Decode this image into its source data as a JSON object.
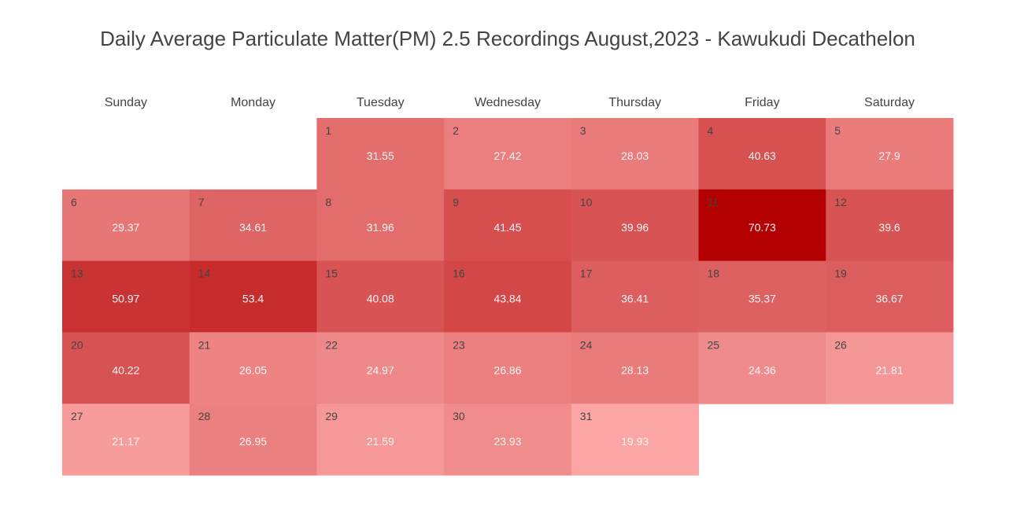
{
  "chart_data": {
    "type": "heatmap",
    "title": "Daily Average Particulate Matter(PM) 2.5 Recordings August,2023 - Kawukudi Decathelon",
    "weekdays": [
      "Sunday",
      "Monday",
      "Tuesday",
      "Wednesday",
      "Thursday",
      "Friday",
      "Saturday"
    ],
    "first_weekday_index": 2,
    "days": [
      1,
      2,
      3,
      4,
      5,
      6,
      7,
      8,
      9,
      10,
      11,
      12,
      13,
      14,
      15,
      16,
      17,
      18,
      19,
      20,
      21,
      22,
      23,
      24,
      25,
      26,
      27,
      28,
      29,
      30,
      31
    ],
    "values": [
      31.55,
      27.42,
      28.03,
      40.63,
      27.9,
      29.37,
      34.61,
      31.96,
      41.45,
      39.96,
      70.73,
      39.6,
      50.97,
      53.4,
      40.08,
      43.84,
      36.41,
      35.37,
      36.67,
      40.22,
      26.05,
      24.97,
      26.86,
      28.13,
      24.36,
      21.81,
      21.17,
      26.95,
      21.59,
      23.93,
      19.93
    ],
    "color_scale": {
      "low": "#fca5a5",
      "high": "#b30000"
    },
    "grid": false,
    "legend": "none"
  }
}
